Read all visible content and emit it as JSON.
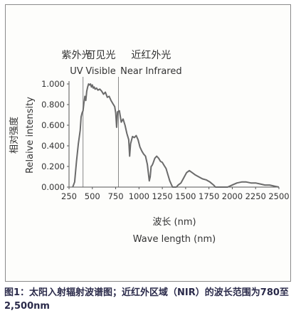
{
  "chart_data": {
    "type": "line",
    "xlabel_cn": "波长 (nm)",
    "xlabel": "Wave length (nm)",
    "ylabel_cn": "相对强度",
    "ylabel": "Relaive intensity",
    "xlim": [
      250,
      2500
    ],
    "ylim": [
      0,
      1.0
    ],
    "xticks": [
      "250",
      "500",
      "750",
      "1000",
      "1250",
      "1500",
      "1750",
      "2000",
      "2250",
      "2500"
    ],
    "yticks": [
      "0.000",
      "0.200",
      "0.400",
      "0.600",
      "0.800",
      "1.000"
    ],
    "regions": [
      {
        "cn": "紫外光",
        "en": "UV",
        "x_center": 330
      },
      {
        "cn": "可见光",
        "en": "Visible",
        "x_center": 590
      },
      {
        "cn": "近红外光",
        "en": "Near Infrared",
        "x_center": 1130
      }
    ],
    "boundaries_x": [
      400,
      780
    ],
    "series": [
      {
        "x": [
          290,
          310,
          330,
          350,
          370,
          380,
          390,
          400,
          410,
          420,
          430,
          440,
          450,
          460,
          470,
          480,
          490,
          500,
          510,
          520,
          530,
          545,
          560,
          580,
          600,
          620,
          640,
          660,
          680,
          700,
          720,
          740,
          750,
          760,
          770,
          790,
          810,
          830,
          850,
          870,
          890,
          900,
          910,
          930,
          950,
          970,
          990,
          1010,
          1030,
          1050,
          1070,
          1090,
          1110,
          1120,
          1130,
          1140,
          1150,
          1170,
          1190,
          1210,
          1230,
          1250,
          1270,
          1290,
          1310,
          1330,
          1350,
          1360,
          1370,
          1380,
          1390,
          1400,
          1420,
          1450,
          1480,
          1510,
          1540,
          1570,
          1600,
          1640,
          1680,
          1720,
          1760,
          1800,
          1820,
          1840,
          1870,
          1900,
          1950,
          2000,
          2050,
          2100,
          2150,
          2200,
          2250,
          2300,
          2350,
          2400,
          2450,
          2500
        ],
        "y": [
          0.0,
          0.05,
          0.25,
          0.42,
          0.55,
          0.68,
          0.72,
          0.74,
          0.82,
          0.88,
          0.84,
          0.93,
          0.97,
          1.0,
          0.99,
          1.0,
          0.97,
          0.99,
          0.96,
          0.97,
          0.95,
          0.96,
          0.94,
          0.95,
          0.93,
          0.9,
          0.92,
          0.87,
          0.88,
          0.84,
          0.81,
          0.78,
          0.72,
          0.58,
          0.73,
          0.74,
          0.63,
          0.66,
          0.6,
          0.52,
          0.46,
          0.3,
          0.42,
          0.49,
          0.48,
          0.5,
          0.46,
          0.39,
          0.35,
          0.32,
          0.3,
          0.22,
          0.06,
          0.1,
          0.2,
          0.21,
          0.23,
          0.28,
          0.3,
          0.28,
          0.25,
          0.24,
          0.21,
          0.18,
          0.12,
          0.06,
          0.02,
          0.0,
          0.0,
          0.0,
          0.0,
          0.0,
          0.02,
          0.04,
          0.09,
          0.14,
          0.16,
          0.14,
          0.12,
          0.1,
          0.08,
          0.07,
          0.05,
          0.02,
          0.0,
          0.0,
          0.0,
          0.0,
          0.0,
          0.02,
          0.04,
          0.05,
          0.05,
          0.04,
          0.04,
          0.03,
          0.02,
          0.02,
          0.01,
          0.0
        ]
      }
    ],
    "grid": false,
    "color": "#6b6b6b"
  },
  "caption": "图1：太阳入射辐射波谱图；近红外区域（NIR）的波长范围为780至2,500nm"
}
